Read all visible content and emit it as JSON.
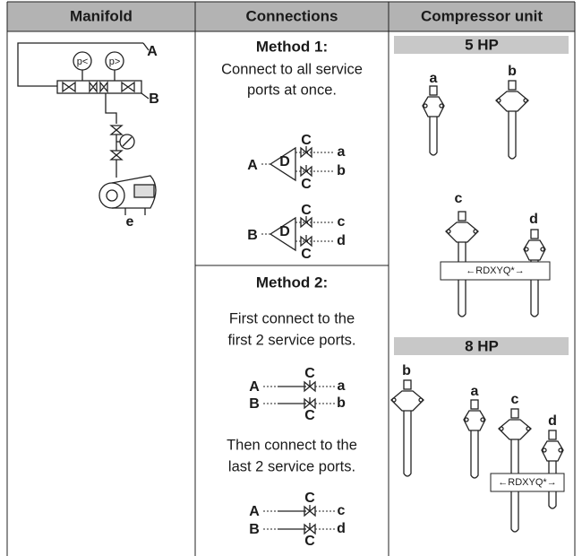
{
  "header": {
    "columns": [
      "Manifold",
      "Connections",
      "Compressor unit"
    ]
  },
  "manifold": {
    "gauges": [
      "p<",
      "p>"
    ],
    "labels": [
      "A",
      "B",
      "e"
    ]
  },
  "method_1": {
    "title": "Method 1:",
    "text": [
      "Connect to all service",
      "ports at once."
    ],
    "diagram": [
      "A",
      "D",
      "C",
      "C",
      "a",
      "b",
      "B",
      "D",
      "C",
      "C",
      "c",
      "d"
    ]
  },
  "method_2": {
    "title": "Method 2:",
    "text_1": [
      "First connect to the",
      "first 2 service ports."
    ],
    "diagram_1": [
      "A",
      "C",
      "a",
      "B",
      "C",
      "b"
    ],
    "text_2": [
      "Then connect to the",
      "last 2 service ports."
    ],
    "diagram_2": [
      "A",
      "C",
      "c",
      "B",
      "C",
      "d"
    ]
  },
  "compressor_unit": {
    "units": [
      {
        "title": "5 HP",
        "ports": [
          "a",
          "b",
          "c",
          "d"
        ],
        "label": "←RDXYQ*→"
      },
      {
        "title": "8 HP",
        "ports": [
          "b",
          "a",
          "c",
          "d"
        ],
        "label": "←RDXYQ*→"
      }
    ]
  }
}
